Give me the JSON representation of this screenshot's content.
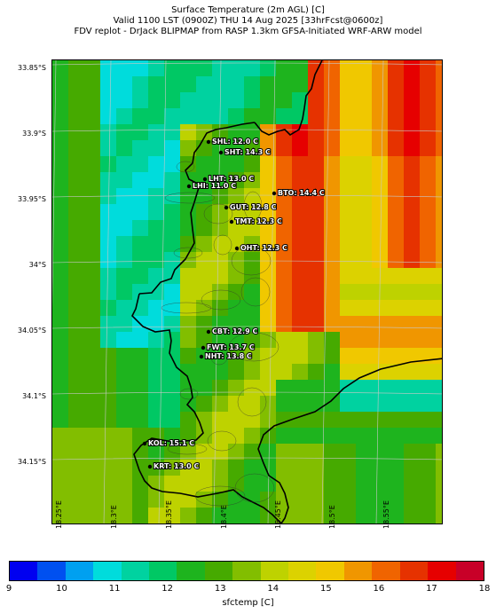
{
  "header": {
    "line1": "Surface Temperature (2m AGL) [C]",
    "line2": "Valid 1100 LST (0900Z) THU 14 Aug 2025 [33hrFcst@0600z]",
    "line3": "FDV replot - DrJack BLIPMAP from RASP 1.3km GFSA-Initiated WRF-ARW model"
  },
  "axes": {
    "lat_labels": [
      "33.85°S",
      "33.9°S",
      "33.95°S",
      "34°S",
      "34.05°S",
      "34.1°S",
      "34.15°S"
    ],
    "lon_labels": [
      "18.25°E",
      "18.3°E",
      "18.35°E",
      "18.4°E",
      "18.45°E",
      "18.5°E",
      "18.55°E"
    ]
  },
  "stations": [
    {
      "code": "SHL",
      "label": "SHL: 12.0 C",
      "temp": 12.0
    },
    {
      "code": "SHT",
      "label": "SHT: 14.3 C",
      "temp": 14.3
    },
    {
      "code": "LHT",
      "label": "LHT: 13.0 C",
      "temp": 13.0
    },
    {
      "code": "LHI",
      "label": "LHI: 11.0 C",
      "temp": 11.0
    },
    {
      "code": "BTO",
      "label": "BTO: 14.4 C",
      "temp": 14.4
    },
    {
      "code": "GUT",
      "label": "GUT: 12.8 C",
      "temp": 12.8
    },
    {
      "code": "TMT",
      "label": "TMT: 12.3 C",
      "temp": 12.3
    },
    {
      "code": "OHT",
      "label": "OHT: 12.3 C",
      "temp": 12.3
    },
    {
      "code": "CBT",
      "label": "CBT: 12.9 C",
      "temp": 12.9
    },
    {
      "code": "FWT",
      "label": "FWT: 13.7 C",
      "temp": 13.7
    },
    {
      "code": "NHT",
      "label": "NHT: 13.8 C",
      "temp": 13.8
    },
    {
      "code": "KOL",
      "label": "KOL: 15.1 C",
      "temp": 15.1
    },
    {
      "code": "KRT",
      "label": "KRT: 13.0 C",
      "temp": 13.0
    }
  ],
  "colorbar": {
    "label": "sfctemp [C]",
    "ticks": [
      "9",
      "10",
      "11",
      "12",
      "13",
      "14",
      "15",
      "16",
      "17",
      "18"
    ],
    "colors": [
      "#0000f0",
      "#0050f0",
      "#00a0f0",
      "#00dcdc",
      "#00d2a0",
      "#00c864",
      "#1eb41e",
      "#46aa00",
      "#82be00",
      "#bed200",
      "#dcd200",
      "#f0c800",
      "#f09600",
      "#f06400",
      "#e63200",
      "#e60000",
      "#c80028"
    ]
  }
}
